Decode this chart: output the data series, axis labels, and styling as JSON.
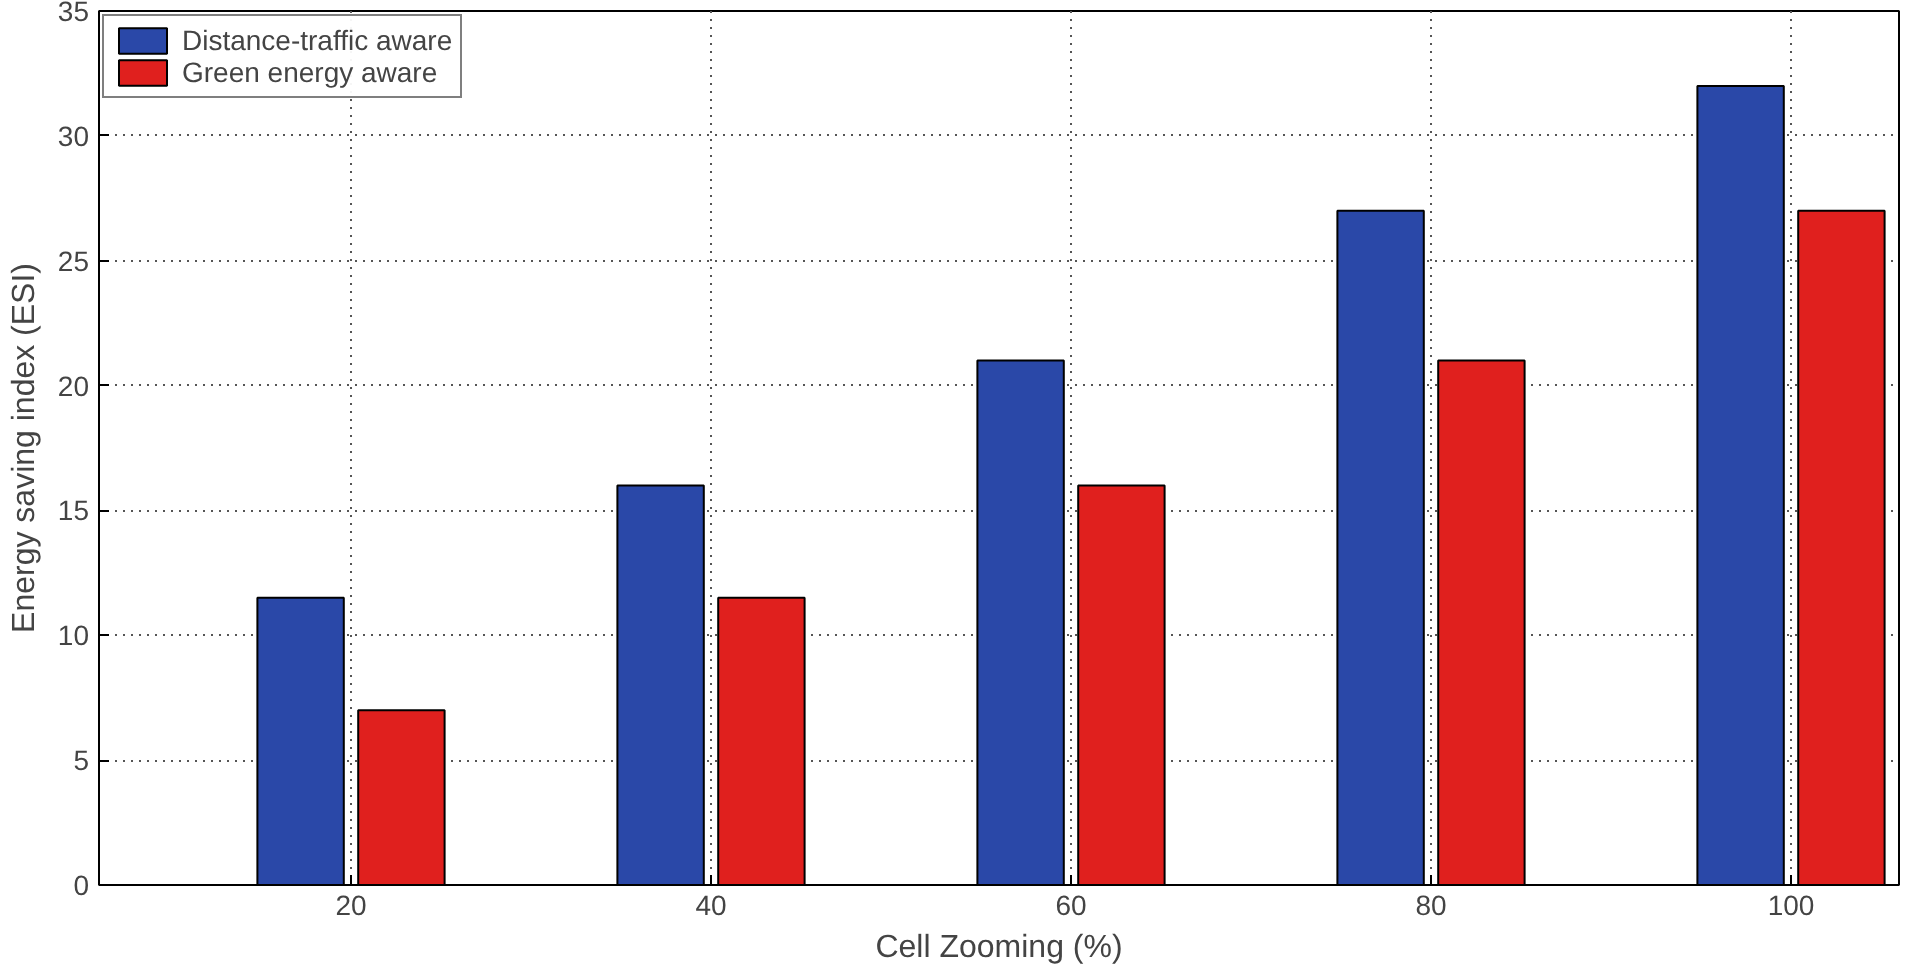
{
  "chart_data": {
    "type": "bar",
    "xlabel": "Cell Zooming (%)",
    "ylabel": "Energy saving index (ESI)",
    "categories": [
      "20",
      "40",
      "60",
      "80",
      "100"
    ],
    "series": [
      {
        "name": "Distance-traffic aware",
        "color": "#2a48a8",
        "values": [
          11.5,
          16,
          21,
          27,
          32
        ]
      },
      {
        "name": "Green energy aware",
        "color": "#e0201e",
        "values": [
          7,
          11.5,
          16,
          21,
          27
        ]
      }
    ],
    "ylim": [
      0,
      35
    ],
    "yticks": [
      0,
      5,
      10,
      15,
      20,
      25,
      30,
      35
    ],
    "grid": true,
    "legend": "top left"
  }
}
